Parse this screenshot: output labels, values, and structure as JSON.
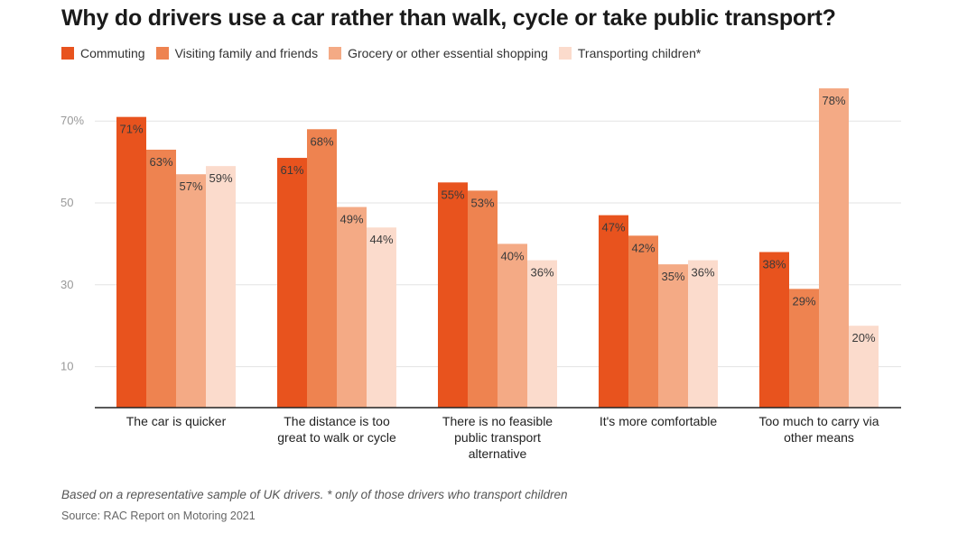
{
  "chart_data": {
    "type": "bar",
    "title": "Why do drivers use a car rather than walk, cycle or take public transport?",
    "categories": [
      [
        "The car is quicker"
      ],
      [
        "The distance is too",
        "great to walk or cycle"
      ],
      [
        "There is no feasible",
        "public transport",
        "alternative"
      ],
      [
        "It's more comfortable"
      ],
      [
        "Too much to carry via",
        "other means"
      ]
    ],
    "series": [
      {
        "name": "Commuting",
        "color": "#e8531e",
        "values": [
          71,
          61,
          55,
          47,
          38
        ],
        "labels": [
          "71%",
          "61%",
          "55%",
          "47%",
          "38%"
        ]
      },
      {
        "name": "Visiting family and friends",
        "color": "#ee8350",
        "values": [
          63,
          68,
          53,
          42,
          29
        ],
        "labels": [
          "63%",
          "68%",
          "53%",
          "42%",
          "29%"
        ]
      },
      {
        "name": "Grocery or other essential shopping",
        "color": "#f4aa85",
        "values": [
          57,
          49,
          40,
          35,
          78
        ],
        "labels": [
          "57%",
          "49%",
          "40%",
          "35%",
          "78%"
        ]
      },
      {
        "name": "Transporting children*",
        "color": "#fbdbcc",
        "values": [
          59,
          44,
          36,
          36,
          20
        ],
        "labels": [
          "59%",
          "44%",
          "36%",
          "36%",
          "20%"
        ]
      }
    ],
    "yticks": [
      10,
      30,
      50,
      70
    ],
    "ytick_labels": [
      "10",
      "30",
      "50",
      "70%"
    ],
    "ylim": [
      0,
      80
    ],
    "grid": true,
    "legend_position": "top-left"
  },
  "note": "Based on a representative sample of UK drivers. * only of those drivers who transport children",
  "source": "Source: RAC Report on Motoring 2021"
}
